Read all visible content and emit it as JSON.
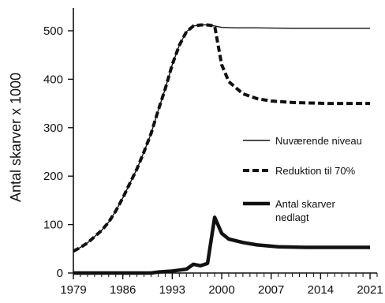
{
  "chart_data": {
    "type": "line",
    "ylabel": "Antal skarver x 1000",
    "xlabel": "",
    "xlim": [
      1979,
      2022
    ],
    "ylim": [
      0,
      500
    ],
    "xticks": [
      1979,
      1986,
      1993,
      2000,
      2007,
      2014,
      2021
    ],
    "yticks": [
      0,
      100,
      200,
      300,
      400,
      500
    ],
    "legend_position": "right",
    "series": [
      {
        "name": "Nuværende niveau",
        "style": "solid-thin",
        "color": "#111111",
        "x": [
          1979,
          1980,
          1981,
          1982,
          1983,
          1984,
          1985,
          1986,
          1987,
          1988,
          1989,
          1990,
          1991,
          1992,
          1993,
          1994,
          1995,
          1996,
          1997,
          1998,
          1999,
          2000,
          2002,
          2005,
          2010,
          2015,
          2021
        ],
        "y": [
          45,
          53,
          62,
          75,
          88,
          105,
          128,
          155,
          185,
          215,
          250,
          288,
          335,
          380,
          430,
          470,
          498,
          510,
          512,
          512,
          510,
          507,
          506,
          506,
          505,
          505,
          505
        ]
      },
      {
        "name": "Reduktion til 70%",
        "style": "dashed-thick",
        "color": "#111111",
        "x": [
          1979,
          1980,
          1981,
          1982,
          1983,
          1984,
          1985,
          1986,
          1987,
          1988,
          1989,
          1990,
          1991,
          1992,
          1993,
          1994,
          1995,
          1996,
          1997,
          1998,
          1999,
          1999.5,
          2000,
          2001,
          2003,
          2005,
          2007,
          2010,
          2015,
          2021
        ],
        "y": [
          45,
          53,
          62,
          75,
          88,
          105,
          128,
          155,
          185,
          215,
          250,
          288,
          335,
          380,
          430,
          470,
          498,
          510,
          512,
          512,
          510,
          470,
          430,
          395,
          370,
          360,
          355,
          352,
          350,
          350
        ]
      },
      {
        "name": "Antal skarver nedlagt",
        "style": "solid-thick",
        "color": "#111111",
        "x": [
          1979,
          1990,
          1991,
          1993,
          1994,
          1995,
          1996,
          1997,
          1998,
          1999,
          2000,
          2001,
          2003,
          2005,
          2008,
          2012,
          2016,
          2021
        ],
        "y": [
          0,
          0,
          2,
          4,
          6,
          8,
          18,
          15,
          20,
          115,
          82,
          70,
          63,
          58,
          54,
          53,
          53,
          53
        ]
      }
    ]
  }
}
